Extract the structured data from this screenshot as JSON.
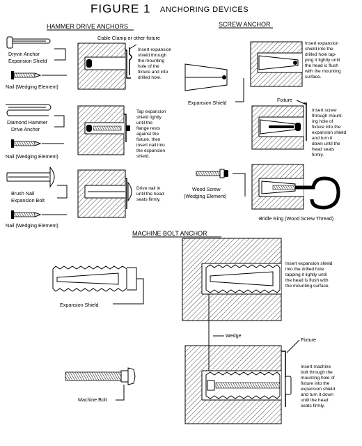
{
  "figure": {
    "title": "FIGURE 1",
    "subtitle": "ANCHORING DEVICES"
  },
  "hammer_drive": {
    "heading": "HAMMER DRIVE ANCHORS",
    "dryvin_label_1": "Dryvin Anchor",
    "dryvin_label_2": "Expansion Shield",
    "nail_1": "Nail (Wedging Element)",
    "clamp_label": "Cable Clamp or other fixture",
    "note_1": [
      "Insert expansion",
      "shield through",
      "the mounting",
      "hole of the",
      "fixture and into",
      "drilled hole."
    ],
    "diamond_label_1": "Diamond Hammer",
    "diamond_label_2": "Drive Anchor",
    "nail_2": "Nail (Wedging Element)",
    "note_2": [
      "Tap expansion",
      "shield lightly",
      "until the",
      "flange rests",
      "against the",
      "fixture, then",
      "insert nail into",
      "the expansion",
      "shield."
    ],
    "brush_label_1": "Brush Nail",
    "brush_label_2": "Expansion Bolt",
    "nail_3": "Nail (Wedging Element)",
    "note_3": [
      "Drive nail in",
      "until the head",
      "seats firmly."
    ]
  },
  "screw_anchor": {
    "heading": "SCREW ANCHOR",
    "note_1": [
      "Insert expansion",
      "shield into the",
      "drilled hole tap-",
      "ping it lightly until",
      "the head is flush",
      "with the mounting",
      "surface."
    ],
    "shield_label": "Expansion Shield",
    "fixture_label": "Fixture",
    "note_2": [
      "Insert screw",
      "through mount-",
      "ing hole of",
      "fixture into the",
      "expansion shield",
      "and turn it",
      "down until the",
      "head seats",
      "firmly."
    ],
    "wood_screw_1": "Wood Screw",
    "wood_screw_2": "(Wedging Element)",
    "bridle_label": "Bridle Ring (Wood Screw Thread)"
  },
  "machine_bolt": {
    "heading": "MACHINE BOLT ANCHOR",
    "shield_label": "Expansion Shield",
    "note_1": [
      "Insert expansion shield",
      "into the drilled hole",
      "tapping it lightly until",
      "the head is flush with",
      "the mounting surface."
    ],
    "wedge_label": "Wedge",
    "fixture_label": "Fixture",
    "bolt_label": "Machine Bolt",
    "note_2": [
      "Insert machine",
      "bolt through the",
      "mounting hole of",
      "fixture into the",
      "expansion shield",
      "and turn it down",
      "until the head",
      "seats firmly."
    ]
  }
}
